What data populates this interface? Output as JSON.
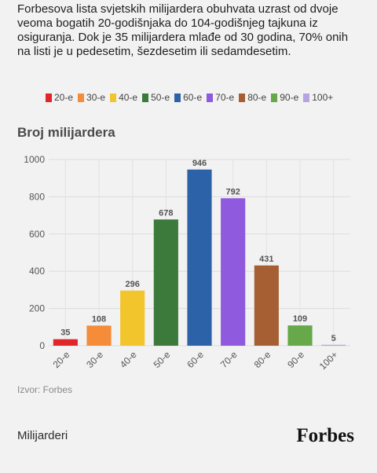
{
  "intro_text": "Forbesova lista svjetskih milijardera obuhvata uzrast od dvoje veoma bogatih 20-godišnjaka do 104-godišnjeg tajkuna iz osiguranja. Dok je 35 milijardera mlađe od 30 godina, 70% onih na listi je u pedesetim, šezdesetim ili sedamdesetim.",
  "footer": {
    "source": "Izvor: Forbes",
    "section": "Milijarderi",
    "brand": "Forbes"
  },
  "chart_data": {
    "type": "bar",
    "title": "Broj milijardera",
    "xlabel": "",
    "ylabel": "",
    "categories": [
      "20-e",
      "30-e",
      "40-e",
      "50-e",
      "60-e",
      "70-e",
      "80-e",
      "90-e",
      "100+"
    ],
    "values": [
      35,
      108,
      296,
      678,
      946,
      792,
      431,
      109,
      5
    ],
    "colors": [
      "#e0252b",
      "#f48c3a",
      "#f2c52c",
      "#3b7a3b",
      "#2b62a8",
      "#8f5ade",
      "#a65f33",
      "#66a84a",
      "#b9a2e0"
    ],
    "ylim": [
      0,
      1000
    ],
    "yticks": [
      0,
      200,
      400,
      600,
      800,
      1000
    ],
    "grid": true,
    "legend_position": "top"
  }
}
